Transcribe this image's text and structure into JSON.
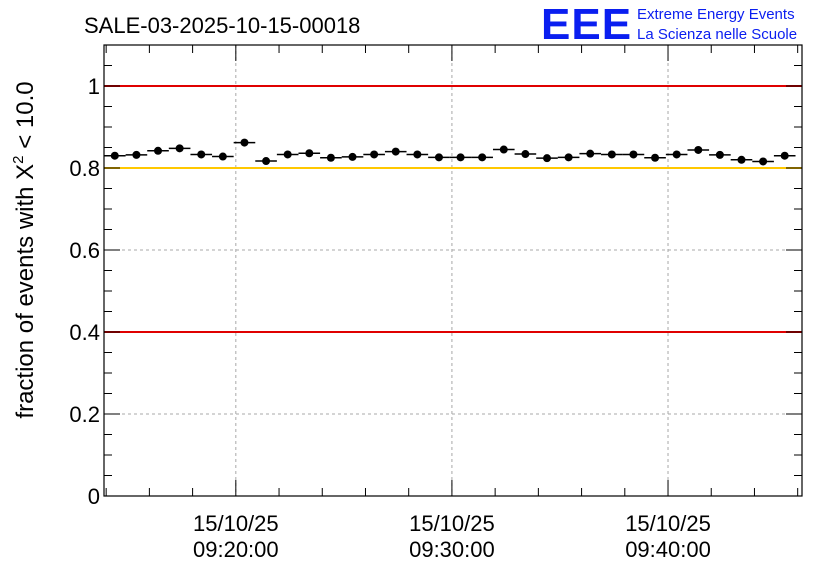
{
  "chart_data": {
    "type": "scatter",
    "title": "SALE-03-2025-10-15-00018",
    "xlabel": "",
    "ylabel_prefix": "fraction of events with ",
    "ylabel_symbol": "X",
    "ylabel_superscript": "2",
    "ylabel_suffix": " < 10.0",
    "ylim": [
      0,
      1.1
    ],
    "yticks": [
      0,
      0.2,
      0.4,
      0.6,
      0.8,
      1
    ],
    "ytick_labels": [
      "0",
      "0.2",
      "0.4",
      "0.6",
      "0.8",
      "1"
    ],
    "xlim_minutes": [
      13.9,
      46.2
    ],
    "xticks_minutes": [
      20,
      30,
      40
    ],
    "xtick_dates": [
      "15/10/25",
      "15/10/25",
      "15/10/25"
    ],
    "xtick_times": [
      "09:20:00",
      "09:30:00",
      "09:40:00"
    ],
    "grid": true,
    "reference_lines": [
      {
        "name": "upper-limit",
        "y": 1.0,
        "color": "#e00000"
      },
      {
        "name": "target",
        "y": 0.8,
        "color": "#ffc800"
      },
      {
        "name": "lower-limit",
        "y": 0.4,
        "color": "#e00000"
      }
    ],
    "bin_width_minutes": 1,
    "series": [
      {
        "name": "fraction",
        "x_minutes": [
          14.4,
          15.4,
          16.4,
          17.4,
          18.4,
          19.4,
          20.4,
          21.4,
          22.4,
          23.4,
          24.4,
          25.4,
          26.4,
          27.4,
          28.4,
          29.4,
          30.4,
          31.4,
          32.4,
          33.4,
          34.4,
          35.4,
          36.4,
          37.4,
          38.4,
          39.4,
          40.4,
          41.4,
          42.4,
          43.4,
          44.4,
          45.4
        ],
        "values": [
          0.83,
          0.832,
          0.842,
          0.848,
          0.833,
          0.828,
          0.862,
          0.817,
          0.833,
          0.836,
          0.825,
          0.827,
          0.833,
          0.84,
          0.833,
          0.826,
          0.826,
          0.826,
          0.845,
          0.834,
          0.824,
          0.826,
          0.835,
          0.833,
          0.833,
          0.825,
          0.833,
          0.844,
          0.832,
          0.82,
          0.816,
          0.83
        ]
      }
    ]
  },
  "branding": {
    "logo_text": "EEE",
    "line1": "Extreme Energy Events",
    "line2": "La Scienza nelle Scuole",
    "logo_color": "#0a1ef0",
    "text_color": "#0a1ef0"
  },
  "colors": {
    "marker": "#000000",
    "axis": "#000000",
    "grid": "#a8a8a8"
  }
}
